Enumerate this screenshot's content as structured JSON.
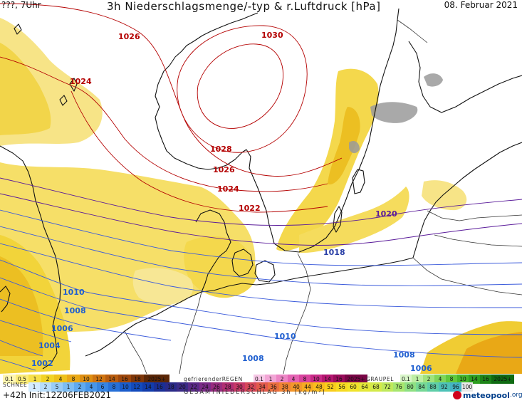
{
  "header": {
    "location_time": "???, 7Uhr",
    "title": "3h Niederschlagsmenge/-typ & r.Luftdruck [hPa]",
    "date": "08. Februar 2021"
  },
  "isobar_labels": [
    {
      "text": "1026",
      "color": "#b40000"
    },
    {
      "text": "1030",
      "color": "#b40000"
    },
    {
      "text": "1024",
      "color": "#b40000"
    },
    {
      "text": "1028",
      "color": "#b40000"
    },
    {
      "text": "1026",
      "color": "#b40000"
    },
    {
      "text": "1024",
      "color": "#b40000"
    },
    {
      "text": "1022",
      "color": "#b40000"
    },
    {
      "text": "1020",
      "color": "#5a1b9a"
    },
    {
      "text": "1018",
      "color": "#2a3fa6"
    },
    {
      "text": "1010",
      "color": "#1f5fd0"
    },
    {
      "text": "1008",
      "color": "#1f5fd0"
    },
    {
      "text": "1006",
      "color": "#1f5fd0"
    },
    {
      "text": "1004",
      "color": "#1f5fd0"
    },
    {
      "text": "1002",
      "color": "#1f5fd0"
    },
    {
      "text": "1010",
      "color": "#1f5fd0"
    },
    {
      "text": "1008",
      "color": "#1f5fd0"
    },
    {
      "text": "1008",
      "color": "#1f5fd0"
    },
    {
      "text": "1006",
      "color": "#1f5fd0"
    }
  ],
  "legend": {
    "rain_values": [
      "0.1",
      "0.5",
      "1",
      "2",
      "4",
      "8",
      "10",
      "12",
      "14",
      "16",
      "18",
      "2025+"
    ],
    "rain_colors": [
      "#fff6b0",
      "#fbec7a",
      "#f7e04a",
      "#f2d325",
      "#eec11a",
      "#e9a816",
      "#de8f12",
      "#cf7410",
      "#b85c0e",
      "#9f480c",
      "#7e3609",
      "#5a2606"
    ],
    "freezing_label": "gefrierenderREGEN",
    "freezing_values": [
      "0.1",
      "1",
      "2",
      "4",
      "8",
      "10",
      "14",
      "16",
      "2025+"
    ],
    "freezing_colors": [
      "#f7c7e6",
      "#f2a6d6",
      "#ec85c5",
      "#e463b3",
      "#d9439f",
      "#c92a88",
      "#b51671",
      "#9a0b5b",
      "#7a0546"
    ],
    "graupel_label": "GRAUPEL",
    "graupel_values": [
      "0.1",
      "1",
      "2",
      "4",
      "8",
      "10",
      "14",
      "16",
      "2025+"
    ],
    "graupel_colors": [
      "#d8f5c8",
      "#bdeea4",
      "#9fe37e",
      "#7fd65a",
      "#5fc83c",
      "#44b52b",
      "#2e9e20",
      "#1d8418",
      "#0f6a12"
    ],
    "snow_label": "SCHNEE",
    "snow_values": [
      "1",
      "2",
      "5",
      "1",
      "2",
      "4",
      "6",
      "8",
      "10",
      "12",
      "14",
      "16",
      "18",
      "20",
      "22",
      "24",
      "26",
      "28",
      "30",
      "32",
      "34",
      "36",
      "38",
      "40",
      "44",
      "48",
      "52",
      "56",
      "60",
      "64",
      "68",
      "72",
      "76",
      "80",
      "84",
      "88",
      "92",
      "96",
      "100"
    ],
    "snow_colors": [
      "#d4ecff",
      "#b7ddfb",
      "#9acdf7",
      "#7dbdf3",
      "#60aaf0",
      "#4796ea",
      "#3584e2",
      "#2670d8",
      "#1a5ccc",
      "#134bbd",
      "#123cab",
      "#1a2f96",
      "#2a2a88",
      "#3b2a86",
      "#5a2a88",
      "#7a2a87",
      "#972b7f",
      "#b02d73",
      "#c63766",
      "#d64759",
      "#e25a4c",
      "#eb6f3f",
      "#f08434",
      "#f4982a",
      "#f7ab22",
      "#f9bd1d",
      "#f9cd1c",
      "#f6da22",
      "#f0e32c",
      "#e4e83a",
      "#d3ea4a",
      "#bfe95c",
      "#a7e66f",
      "#8ee083",
      "#76d896",
      "#5fcea8",
      "#4dc2b7",
      "#43b4c3",
      "#e9e9e9"
    ],
    "bottom_label": "GESAMTNIEDERSCHLAG 3h [kg/m²]"
  },
  "footer": {
    "run": "+42h  Init:12Z06FEB2021",
    "brand_name": "meteopool",
    "brand_tld": ".org"
  },
  "colors": {
    "precip_light": "#f6e06a",
    "precip_mid": "#f0cf33",
    "precip_dark": "#eab51c",
    "coast": "#111111",
    "border": "#333333",
    "isobar_high": "#b40000",
    "isobar_mid": "#5a1b9a",
    "isobar_low": "#3b5bdb",
    "snow_gray": "#8c8c8c"
  }
}
